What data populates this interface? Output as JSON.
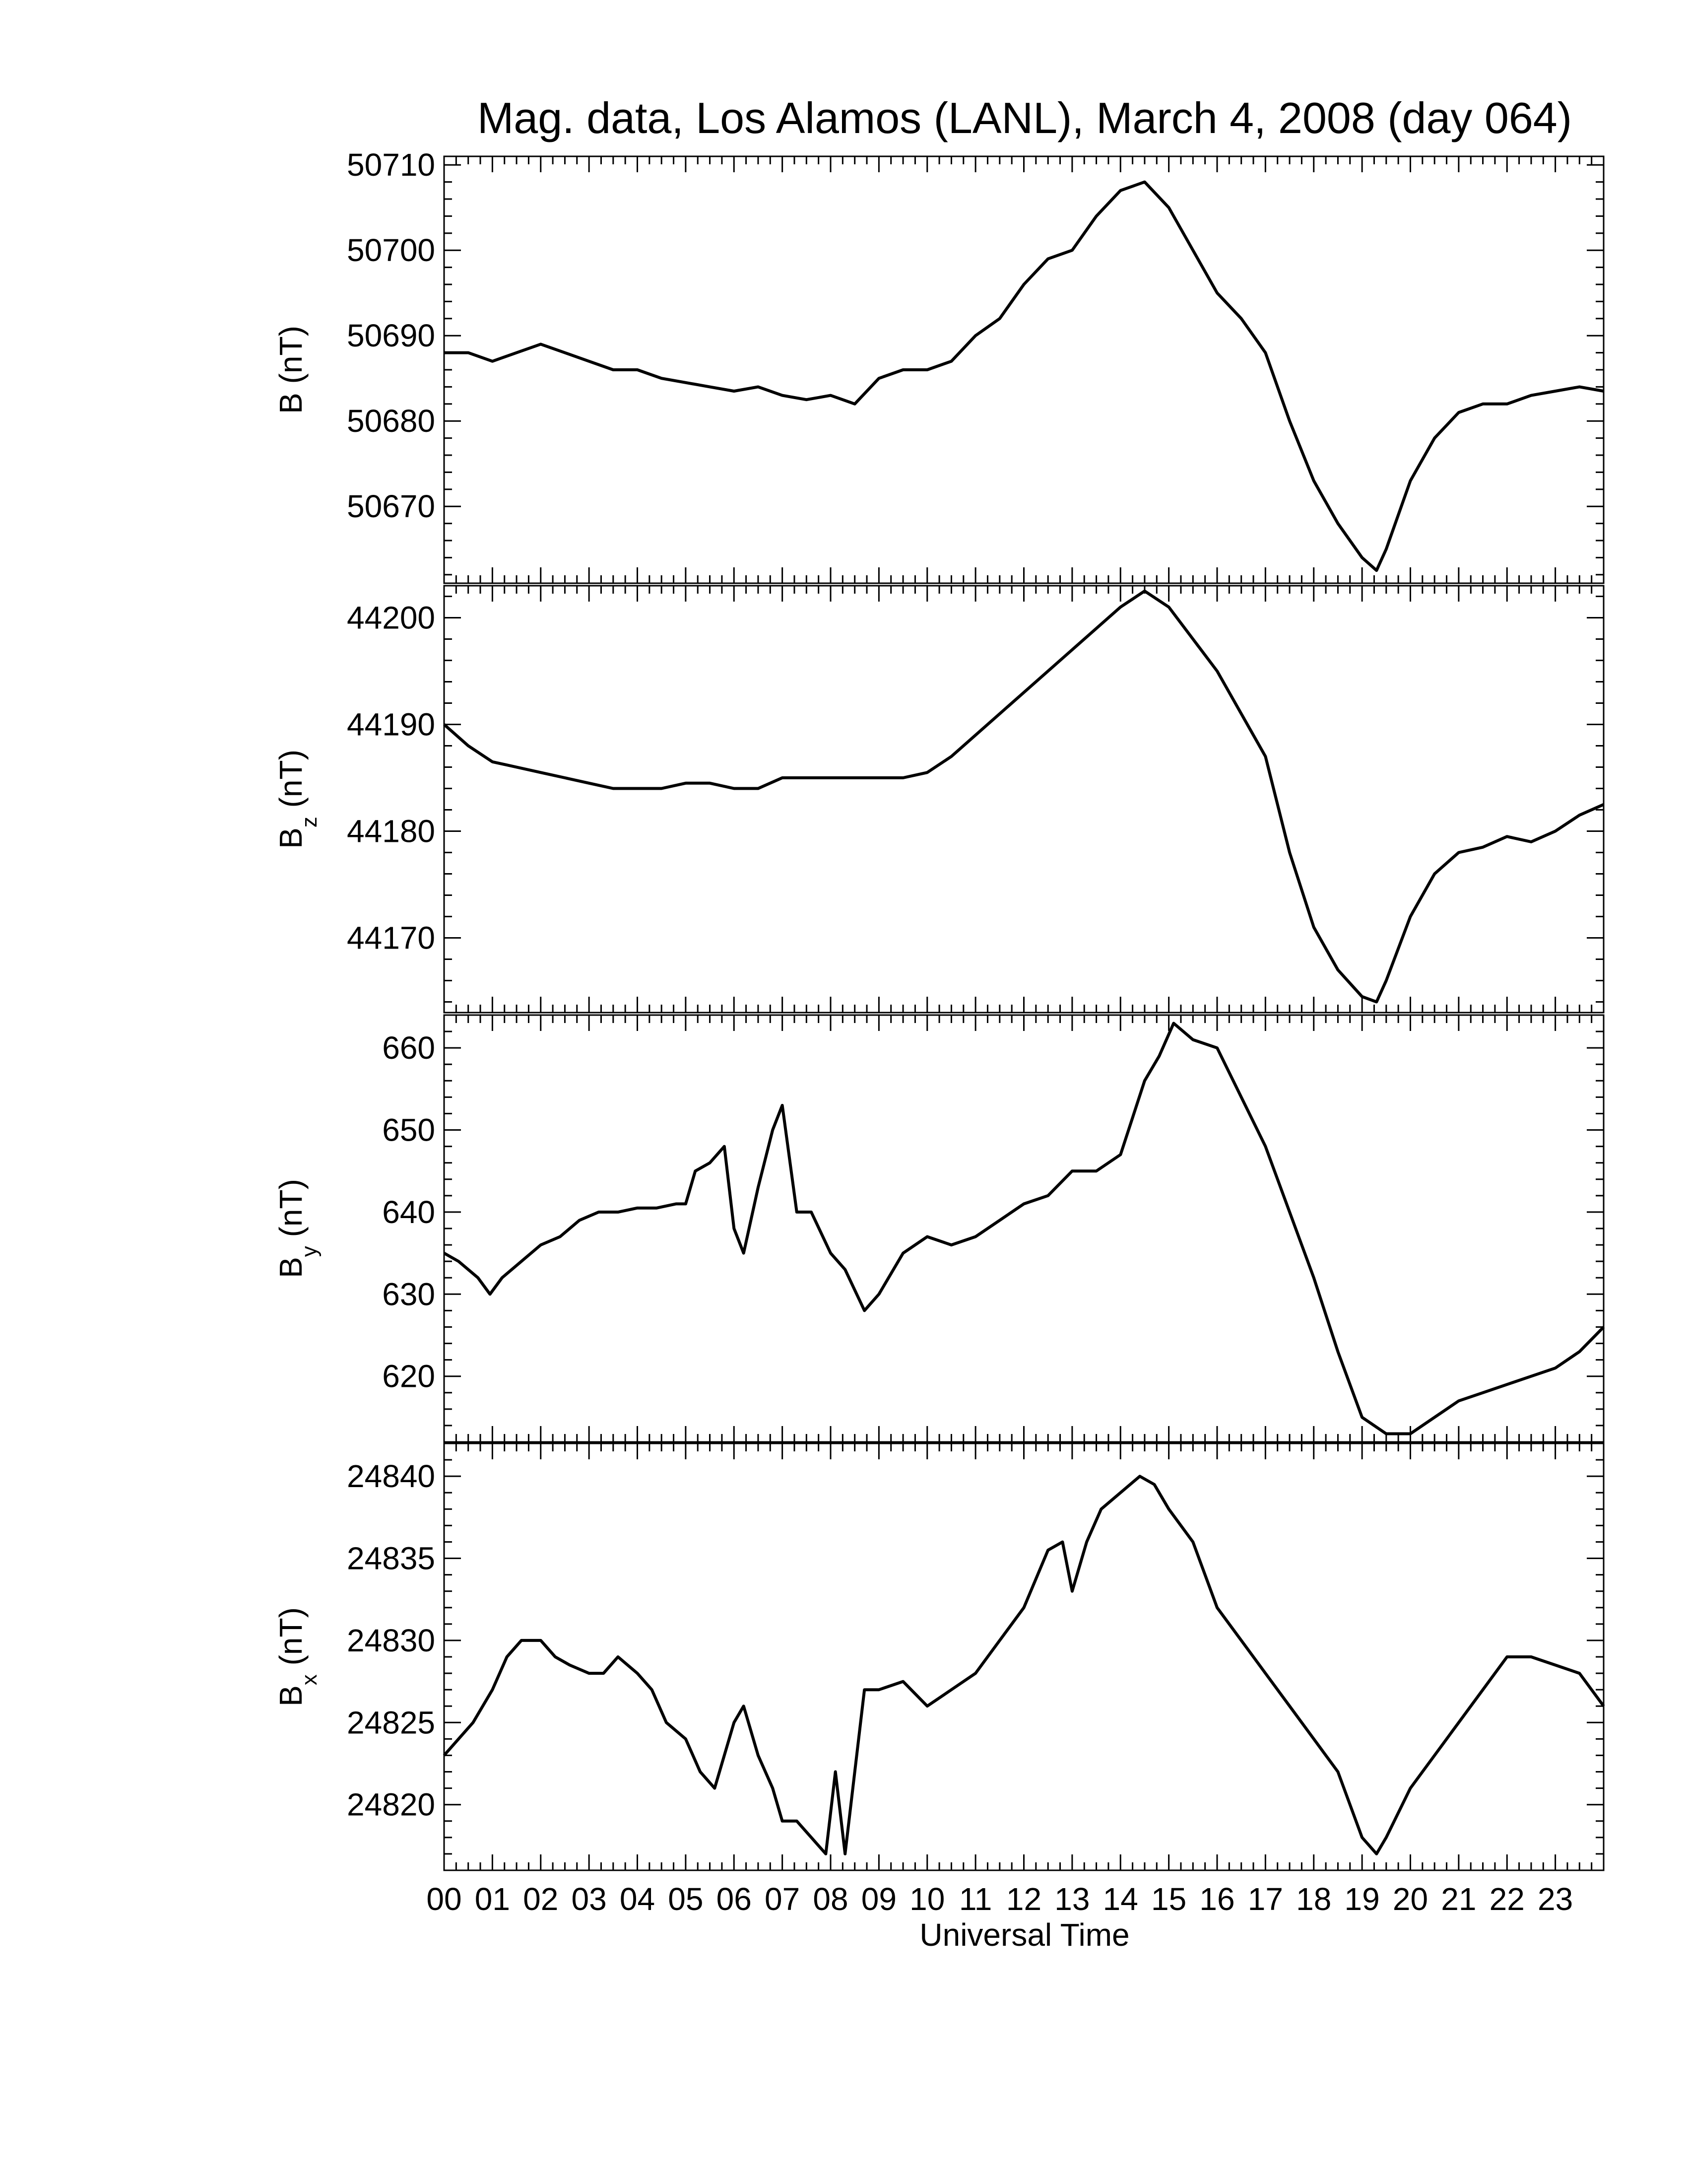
{
  "title": "Mag. data, Los Alamos (LANL), March 4, 2008 (day 064)",
  "xlabel": "Universal Time",
  "x_ticks": [
    "00",
    "01",
    "02",
    "03",
    "04",
    "05",
    "06",
    "07",
    "08",
    "09",
    "10",
    "11",
    "12",
    "13",
    "14",
    "15",
    "16",
    "17",
    "18",
    "19",
    "20",
    "21",
    "22",
    "23"
  ],
  "chart_data": [
    {
      "type": "line",
      "ylabel_main": "B",
      "ylabel_sub": "",
      "ylabel_unit": "(nT)",
      "xlim": [
        0,
        24
      ],
      "ylim": [
        50661,
        50711
      ],
      "yticks": [
        50670,
        50680,
        50690,
        50700,
        50710
      ],
      "x": [
        0,
        0.5,
        1,
        1.5,
        2,
        2.5,
        3,
        3.5,
        4,
        4.5,
        5,
        5.5,
        6,
        6.5,
        7,
        7.5,
        8,
        8.5,
        9,
        9.5,
        10,
        10.5,
        11,
        11.5,
        12,
        12.5,
        13,
        13.5,
        14,
        14.5,
        15,
        15.5,
        16,
        16.5,
        17,
        17.5,
        18,
        18.5,
        19,
        19.3,
        19.5,
        20,
        20.5,
        21,
        21.5,
        22,
        22.5,
        23,
        23.5,
        24
      ],
      "y": [
        50688,
        50688,
        50687,
        50688,
        50689,
        50688,
        50687,
        50686,
        50686,
        50685,
        50684.5,
        50684,
        50683.5,
        50684,
        50683,
        50682.5,
        50683,
        50682,
        50685,
        50686,
        50686,
        50687,
        50690,
        50692,
        50696,
        50699,
        50700,
        50704,
        50707,
        50708,
        50705,
        50700,
        50695,
        50692,
        50688,
        50680,
        50673,
        50668,
        50664,
        50662.5,
        50665,
        50673,
        50678,
        50681,
        50682,
        50682,
        50683,
        50683.5,
        50684,
        50683.5
      ]
    },
    {
      "type": "line",
      "ylabel_main": "B",
      "ylabel_sub": "z",
      "ylabel_unit": "(nT)",
      "xlim": [
        0,
        24
      ],
      "ylim": [
        44163,
        44203
      ],
      "yticks": [
        44170,
        44180,
        44190,
        44200
      ],
      "x": [
        0,
        0.5,
        1,
        1.5,
        2,
        2.5,
        3,
        3.5,
        4,
        4.5,
        5,
        5.5,
        6,
        6.5,
        7,
        7.5,
        8,
        8.5,
        9,
        9.5,
        10,
        10.5,
        11,
        11.5,
        12,
        12.5,
        13,
        13.5,
        14,
        14.5,
        15,
        15.5,
        16,
        16.5,
        17,
        17.5,
        18,
        18.5,
        19,
        19.3,
        19.5,
        20,
        20.5,
        21,
        21.5,
        22,
        22.5,
        23,
        23.5,
        24
      ],
      "y": [
        44190,
        44188,
        44186.5,
        44186,
        44185.5,
        44185,
        44184.5,
        44184,
        44184,
        44184,
        44184.5,
        44184.5,
        44184,
        44184,
        44185,
        44185,
        44185,
        44185,
        44185,
        44185,
        44185.5,
        44187,
        44189,
        44191,
        44193,
        44195,
        44197,
        44199,
        44201,
        44202.5,
        44201,
        44198,
        44195,
        44191,
        44187,
        44178,
        44171,
        44167,
        44164.5,
        44164,
        44166,
        44172,
        44176,
        44178,
        44178.5,
        44179.5,
        44179,
        44180,
        44181.5,
        44182.5
      ]
    },
    {
      "type": "line",
      "ylabel_main": "B",
      "ylabel_sub": "y",
      "ylabel_unit": "(nT)",
      "xlim": [
        0,
        24
      ],
      "ylim": [
        612,
        664
      ],
      "yticks": [
        620,
        630,
        640,
        650,
        660
      ],
      "x": [
        0,
        0.3,
        0.7,
        0.95,
        1.2,
        1.6,
        2,
        2.4,
        2.8,
        3.2,
        3.6,
        4,
        4.4,
        4.8,
        5,
        5.2,
        5.5,
        5.8,
        6,
        6.2,
        6.5,
        6.8,
        7,
        7.3,
        7.6,
        8,
        8.3,
        8.7,
        9,
        9.5,
        10,
        10.5,
        11,
        11.5,
        12,
        12.5,
        13,
        13.5,
        14,
        14.5,
        14.8,
        15.1,
        15.5,
        16,
        16.5,
        17,
        17.5,
        18,
        18.5,
        19,
        19.5,
        20,
        20.5,
        21,
        21.5,
        22,
        22.5,
        23,
        23.5,
        24
      ],
      "y": [
        635,
        634,
        632,
        630,
        632,
        634,
        636,
        637,
        639,
        640,
        640,
        640.5,
        640.5,
        641,
        641,
        645,
        646,
        648,
        638,
        635,
        643,
        650,
        653,
        640,
        640,
        635,
        633,
        628,
        630,
        635,
        637,
        636,
        637,
        639,
        641,
        642,
        645,
        645,
        647,
        656,
        659,
        663,
        661,
        660,
        654,
        648,
        640,
        632,
        623,
        615,
        613,
        613,
        615,
        617,
        618,
        619,
        620,
        621,
        623,
        626
      ]
    },
    {
      "type": "line",
      "ylabel_main": "B",
      "ylabel_sub": "x",
      "ylabel_unit": "(nT)",
      "xlim": [
        0,
        24
      ],
      "ylim": [
        24816,
        24842
      ],
      "yticks": [
        24820,
        24825,
        24830,
        24835,
        24840
      ],
      "x": [
        0,
        0.3,
        0.6,
        1,
        1.3,
        1.6,
        2,
        2.3,
        2.6,
        3,
        3.3,
        3.6,
        4,
        4.3,
        4.6,
        5,
        5.3,
        5.6,
        6,
        6.2,
        6.5,
        6.8,
        7,
        7.3,
        7.6,
        7.9,
        8.1,
        8.3,
        8.5,
        8.7,
        9,
        9.5,
        10,
        10.5,
        11,
        11.5,
        12,
        12.5,
        12.8,
        13,
        13.3,
        13.6,
        14,
        14.4,
        14.7,
        15,
        15.5,
        16,
        16.5,
        17,
        17.5,
        18,
        18.5,
        19,
        19.3,
        19.5,
        20,
        20.5,
        21,
        21.5,
        22,
        22.5,
        23,
        23.5,
        24
      ],
      "y": [
        24823,
        24824,
        24825,
        24827,
        24829,
        24830,
        24830,
        24829,
        24828.5,
        24828,
        24828,
        24829,
        24828,
        24827,
        24825,
        24824,
        24822,
        24821,
        24825,
        24826,
        24823,
        24821,
        24819,
        24819,
        24818,
        24817,
        24822,
        24817,
        24822,
        24827,
        24827,
        24827.5,
        24826,
        24827,
        24828,
        24830,
        24832,
        24835.5,
        24836,
        24833,
        24836,
        24838,
        24839,
        24840,
        24839.5,
        24838,
        24836,
        24832,
        24830,
        24828,
        24826,
        24824,
        24822,
        24818,
        24817,
        24818,
        24821,
        24823,
        24825,
        24827,
        24829,
        24829,
        24828.5,
        24828,
        24826
      ]
    }
  ]
}
